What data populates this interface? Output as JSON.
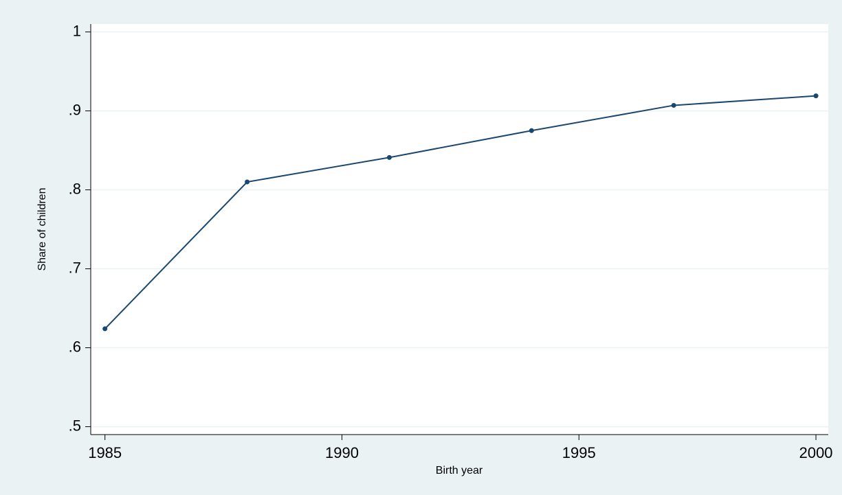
{
  "chart_data": {
    "type": "line",
    "x_label": "Birth year",
    "y_label": "Share of children",
    "x": [
      1985,
      1988,
      1991,
      1994,
      1997,
      2000
    ],
    "series": [
      {
        "name": "Share of children",
        "color": "#1a476f",
        "values": [
          0.624,
          0.81,
          0.841,
          0.875,
          0.907,
          0.919
        ]
      }
    ],
    "xlim": [
      1984.7,
      2000.26
    ],
    "xticks": [
      1985,
      1990,
      1995,
      2000
    ],
    "ylim": [
      0.49,
      1.01
    ],
    "yticks": [
      {
        "value": 0.5,
        "label": ".5"
      },
      {
        "value": 0.6,
        "label": ".6"
      },
      {
        "value": 0.7,
        "label": ".7"
      },
      {
        "value": 0.8,
        "label": ".8"
      },
      {
        "value": 0.9,
        "label": ".9"
      },
      1
    ],
    "grid": true
  }
}
